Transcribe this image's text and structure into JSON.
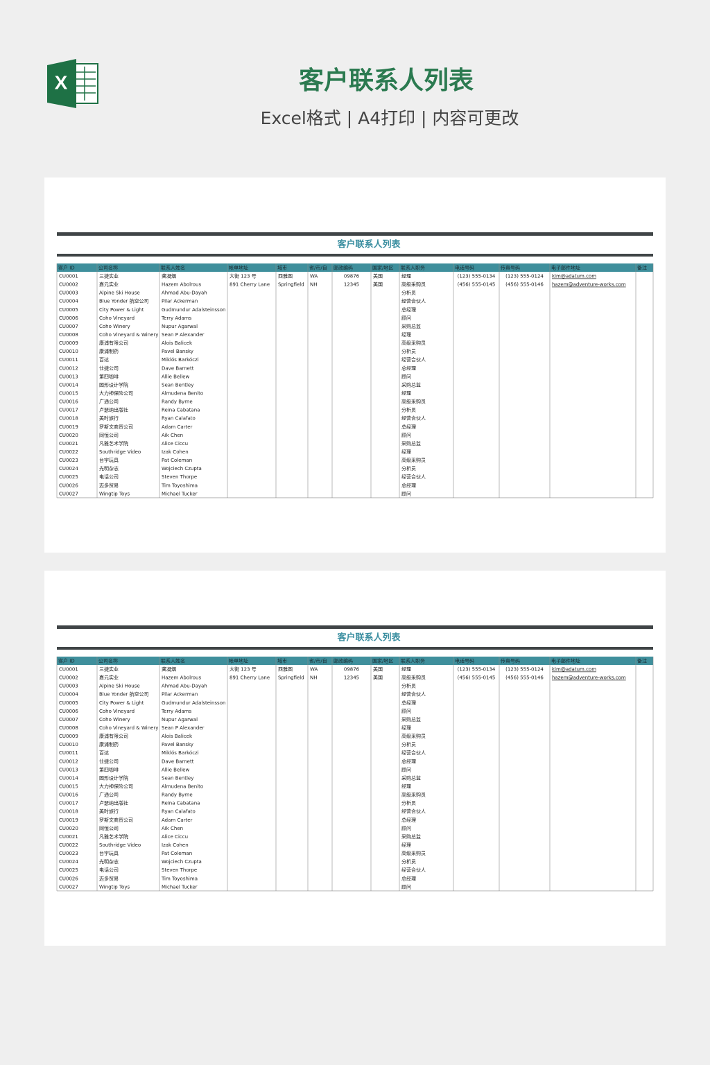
{
  "header": {
    "title": "客户联系人列表",
    "subtitle": "Excel格式 | A4打印 | 内容可更改"
  },
  "sheets": [
    {
      "title": "客户联系人列表",
      "columns": [
        "客户 ID",
        "公司名称",
        "联系人姓名",
        "帐单地址",
        "城市",
        "省/市/自",
        "邮政编码",
        "国家/地区",
        "联系人职务",
        "电话号码",
        "传真号码",
        "电子邮件地址",
        "备注"
      ],
      "rows": [
        {
          "id": "CU0001",
          "company": "三捷实业",
          "contact": "龚凝烟",
          "address": "大街 123 号",
          "city": "西雅图",
          "state": "WA",
          "zip": "09876",
          "country": "美国",
          "title": "经理",
          "phone": "(123) 555-0134",
          "fax": "(123) 555-0124",
          "email": "kim@adatum.com"
        },
        {
          "id": "CU0002",
          "company": "嘉元实业",
          "contact": "Hazem Abolrous",
          "address": "891 Cherry Lane",
          "city": "Springfield",
          "state": "NH",
          "zip": "12345",
          "country": "美国",
          "title": "高级采购员",
          "phone": "(456) 555-0145",
          "fax": "(456) 555-0146",
          "email": "hazem@adventure-works.com"
        },
        {
          "id": "CU0003",
          "company": "Alpine Ski House",
          "contact": "Ahmad Abu-Dayah",
          "title": "分析员"
        },
        {
          "id": "CU0004",
          "company": "Blue Yonder 航空公司",
          "contact": "Pilar Ackerman",
          "title": "经营合伙人"
        },
        {
          "id": "CU0005",
          "company": "City Power & Light",
          "contact": "Gudmundur Adalsteinsson",
          "title": "总经理"
        },
        {
          "id": "CU0006",
          "company": "Coho Vineyard",
          "contact": "Terry Adams",
          "title": "顾问"
        },
        {
          "id": "CU0007",
          "company": "Coho Winery",
          "contact": "Nupur Agarwal",
          "title": "采购总监"
        },
        {
          "id": "CU0008",
          "company": "Coho Vineyard & Winery",
          "contact": "Sean P Alexander",
          "title": "经理"
        },
        {
          "id": "CU0009",
          "company": "康浦有限公司",
          "contact": "Alois Balicek",
          "title": "高级采购员"
        },
        {
          "id": "CU0010",
          "company": "康浦制药",
          "contact": "Pavel Bansky",
          "title": "分析员"
        },
        {
          "id": "CU0011",
          "company": "百达",
          "contact": "Miklós Barkóczi",
          "title": "经营合伙人"
        },
        {
          "id": "CU0012",
          "company": "仕捷公司",
          "contact": "Dave Barnett",
          "title": "总经理"
        },
        {
          "id": "CU0013",
          "company": "第四咖啡",
          "contact": "Allie Bellew",
          "title": "顾问"
        },
        {
          "id": "CU0014",
          "company": "图形设计学院",
          "contact": "Sean Bentley",
          "title": "采购总监"
        },
        {
          "id": "CU0015",
          "company": "大力神保险公司",
          "contact": "Almudena Benito",
          "title": "经理"
        },
        {
          "id": "CU0016",
          "company": "广通公司",
          "contact": "Randy Byrne",
          "title": "高级采购员"
        },
        {
          "id": "CU0017",
          "company": "卢瑟纳出版社",
          "contact": "Reina Cabatana",
          "title": "分析员"
        },
        {
          "id": "CU0018",
          "company": "美时旅行",
          "contact": "Ryan Calafato",
          "title": "经营合伙人"
        },
        {
          "id": "CU0019",
          "company": "罗斯文商贸公司",
          "contact": "Adam Carter",
          "title": "总经理"
        },
        {
          "id": "CU0020",
          "company": "同恒公司",
          "contact": "Aik Chen",
          "title": "顾问"
        },
        {
          "id": "CU0021",
          "company": "凡雅艺术学院",
          "contact": "Alice Ciccu",
          "title": "采购总监"
        },
        {
          "id": "CU0022",
          "company": "Southridge Video",
          "contact": "Izak Cohen",
          "title": "经理"
        },
        {
          "id": "CU0023",
          "company": "台宇玩具",
          "contact": "Pat Coleman",
          "title": "高级采购员"
        },
        {
          "id": "CU0024",
          "company": "光明杂志",
          "contact": "Wojciech Czupta",
          "title": "分析员"
        },
        {
          "id": "CU0025",
          "company": "电话公司",
          "contact": "Steven Thorpe",
          "title": "经营合伙人"
        },
        {
          "id": "CU0026",
          "company": "迈多贸易",
          "contact": "Tim Toyoshima",
          "title": "总经理"
        },
        {
          "id": "CU0027",
          "company": "Wingtip Toys",
          "contact": "Michael Tucker",
          "title": "顾问"
        }
      ]
    },
    {
      "title": "客户联系人列表",
      "columns": [
        "客户 ID",
        "公司名称",
        "联系人姓名",
        "帐单地址",
        "城市",
        "省/市/自",
        "邮政编码",
        "国家/地区",
        "联系人职务",
        "电话号码",
        "传真号码",
        "电子邮件地址",
        "备注"
      ],
      "rows": [
        {
          "id": "CU0001",
          "company": "三捷实业",
          "contact": "龚凝烟",
          "address": "大街 123 号",
          "city": "西雅图",
          "state": "WA",
          "zip": "09876",
          "country": "美国",
          "title": "经理",
          "phone": "(123) 555-0134",
          "fax": "(123) 555-0124",
          "email": "kim@adatum.com"
        },
        {
          "id": "CU0002",
          "company": "嘉元实业",
          "contact": "Hazem Abolrous",
          "address": "891 Cherry Lane",
          "city": "Springfield",
          "state": "NH",
          "zip": "12345",
          "country": "美国",
          "title": "高级采购员",
          "phone": "(456) 555-0145",
          "fax": "(456) 555-0146",
          "email": "hazem@adventure-works.com"
        },
        {
          "id": "CU0003",
          "company": "Alpine Ski House",
          "contact": "Ahmad Abu-Dayah",
          "title": "分析员"
        },
        {
          "id": "CU0004",
          "company": "Blue Yonder 航空公司",
          "contact": "Pilar Ackerman",
          "title": "经营合伙人"
        },
        {
          "id": "CU0005",
          "company": "City Power & Light",
          "contact": "Gudmundur Adalsteinsson",
          "title": "总经理"
        },
        {
          "id": "CU0006",
          "company": "Coho Vineyard",
          "contact": "Terry Adams",
          "title": "顾问"
        },
        {
          "id": "CU0007",
          "company": "Coho Winery",
          "contact": "Nupur Agarwal",
          "title": "采购总监"
        },
        {
          "id": "CU0008",
          "company": "Coho Vineyard & Winery",
          "contact": "Sean P Alexander",
          "title": "经理"
        },
        {
          "id": "CU0009",
          "company": "康浦有限公司",
          "contact": "Alois Balicek",
          "title": "高级采购员"
        },
        {
          "id": "CU0010",
          "company": "康浦制药",
          "contact": "Pavel Bansky",
          "title": "分析员"
        },
        {
          "id": "CU0011",
          "company": "百达",
          "contact": "Miklós Barkóczi",
          "title": "经营合伙人"
        },
        {
          "id": "CU0012",
          "company": "仕捷公司",
          "contact": "Dave Barnett",
          "title": "总经理"
        },
        {
          "id": "CU0013",
          "company": "第四咖啡",
          "contact": "Allie Bellew",
          "title": "顾问"
        },
        {
          "id": "CU0014",
          "company": "图形设计学院",
          "contact": "Sean Bentley",
          "title": "采购总监"
        },
        {
          "id": "CU0015",
          "company": "大力神保险公司",
          "contact": "Almudena Benito",
          "title": "经理"
        },
        {
          "id": "CU0016",
          "company": "广通公司",
          "contact": "Randy Byrne",
          "title": "高级采购员"
        },
        {
          "id": "CU0017",
          "company": "卢瑟纳出版社",
          "contact": "Reina Cabatana",
          "title": "分析员"
        },
        {
          "id": "CU0018",
          "company": "美时旅行",
          "contact": "Ryan Calafato",
          "title": "经营合伙人"
        },
        {
          "id": "CU0019",
          "company": "罗斯文商贸公司",
          "contact": "Adam Carter",
          "title": "总经理"
        },
        {
          "id": "CU0020",
          "company": "同恒公司",
          "contact": "Aik Chen",
          "title": "顾问"
        },
        {
          "id": "CU0021",
          "company": "凡雅艺术学院",
          "contact": "Alice Ciccu",
          "title": "采购总监"
        },
        {
          "id": "CU0022",
          "company": "Southridge Video",
          "contact": "Izak Cohen",
          "title": "经理"
        },
        {
          "id": "CU0023",
          "company": "台宇玩具",
          "contact": "Pat Coleman",
          "title": "高级采购员"
        },
        {
          "id": "CU0024",
          "company": "光明杂志",
          "contact": "Wojciech Czupta",
          "title": "分析员"
        },
        {
          "id": "CU0025",
          "company": "电话公司",
          "contact": "Steven Thorpe",
          "title": "经营合伙人"
        },
        {
          "id": "CU0026",
          "company": "迈多贸易",
          "contact": "Tim Toyoshima",
          "title": "总经理"
        },
        {
          "id": "CU0027",
          "company": "Wingtip Toys",
          "contact": "Michael Tucker",
          "title": "顾问"
        }
      ]
    }
  ]
}
